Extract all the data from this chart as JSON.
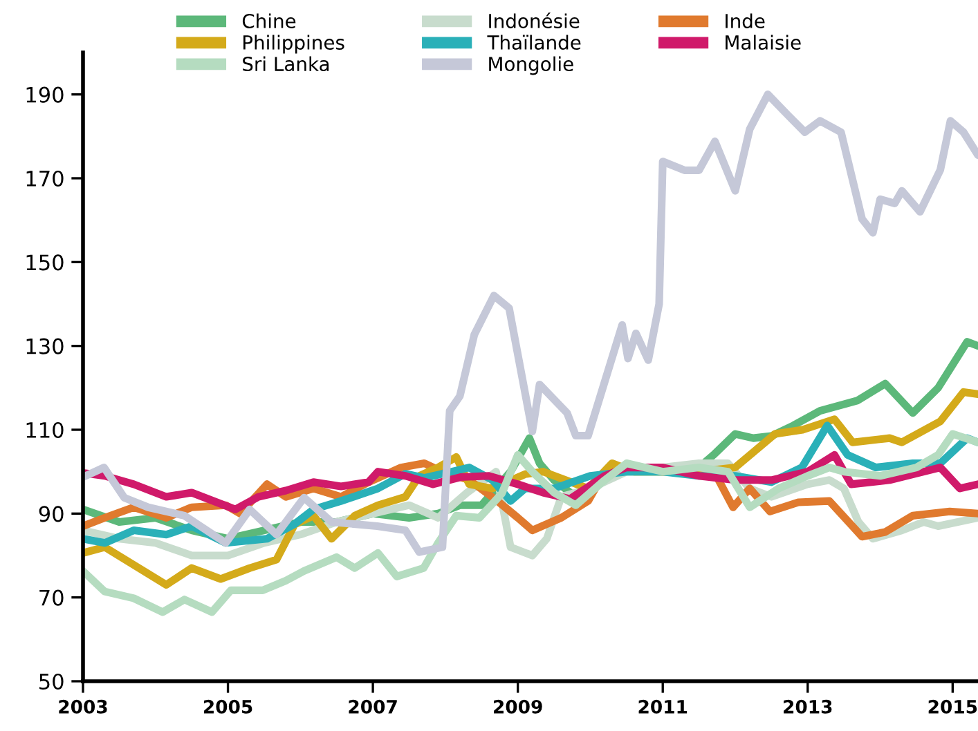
{
  "chart_data": {
    "type": "line",
    "xlim": [
      2003,
      2015.35
    ],
    "xticks": [
      2003,
      2005,
      2007,
      2009,
      2011,
      2013,
      2015
    ],
    "ylim": [
      50,
      200
    ],
    "yticks": [
      50,
      70,
      90,
      110,
      130,
      150,
      170,
      190
    ],
    "legend": "top",
    "series": [
      {
        "name": "Chine",
        "color": "#5cb87a",
        "x": [
          2003,
          2003.5,
          2004,
          2004.5,
          2005,
          2005.5,
          2006,
          2006.5,
          2007,
          2007.5,
          2007.9,
          2008.2,
          2008.5,
          2008.9,
          2009.16,
          2009.3,
          2009.5,
          2009.8,
          2010,
          2010.3,
          2010.8,
          2011,
          2011.5,
          2011.7,
          2012,
          2012.25,
          2012.5,
          2012.8,
          2013.17,
          2013.69,
          2014.07,
          2014.45,
          2014.8,
          2015.2,
          2015.35
        ],
        "values": [
          91,
          88,
          89,
          86,
          84,
          86,
          88,
          88,
          90,
          89,
          90,
          92,
          92,
          100,
          108,
          102,
          98,
          94,
          96,
          100,
          100,
          100,
          101,
          104,
          109,
          108,
          108.5,
          111,
          114.5,
          117,
          121,
          114,
          120,
          131,
          130
        ]
      },
      {
        "name": "Indonésie",
        "color": "#c8dccd",
        "x": [
          2003,
          2003.5,
          2004,
          2004.5,
          2005,
          2005.5,
          2006,
          2006.5,
          2007,
          2007.5,
          2007.9,
          2008.3,
          2008.7,
          2008.9,
          2009.2,
          2009.4,
          2009.6,
          2010,
          2010.5,
          2011,
          2011.5,
          2011.9,
          2012.2,
          2012.5,
          2013,
          2013.3,
          2013.5,
          2013.7,
          2013.9,
          2014.3,
          2014.6,
          2014.8,
          2015.35
        ],
        "values": [
          86,
          84,
          83,
          80,
          80,
          83,
          85,
          88,
          90,
          92,
          89,
          95,
          100,
          82,
          80,
          84,
          94,
          96,
          100,
          101,
          102,
          102,
          96,
          94,
          97,
          98,
          96,
          88,
          84,
          86,
          88,
          87,
          89
        ]
      },
      {
        "name": "Inde",
        "color": "#e07a2e",
        "x": [
          2003,
          2003.3,
          2003.7,
          2004.15,
          2004.5,
          2004.97,
          2005.17,
          2005.54,
          2005.8,
          2006.18,
          2006.56,
          2006.94,
          2007.39,
          2007.71,
          2007.96,
          2008.33,
          2008.72,
          2009.0,
          2009.2,
          2009.6,
          2009.97,
          2010.2,
          2010.5,
          2011,
          2011.5,
          2011.75,
          2011.97,
          2012.2,
          2012.48,
          2012.87,
          2013.3,
          2013.75,
          2014.07,
          2014.45,
          2014.96,
          2015.35
        ],
        "values": [
          87,
          89,
          91.5,
          89,
          91.5,
          92,
          90,
          97,
          94,
          96,
          94,
          97.5,
          101,
          102,
          100,
          98,
          93,
          89,
          86,
          89,
          93,
          100,
          101,
          100,
          100,
          98.7,
          91.5,
          96,
          90.5,
          92.7,
          93,
          84.5,
          85.6,
          89.5,
          90.5,
          90
        ]
      },
      {
        "name": "Philippines",
        "color": "#d4aa1a",
        "x": [
          2003,
          2003.3,
          2004.15,
          2004.5,
          2004.9,
          2005.3,
          2005.67,
          2005.92,
          2006.18,
          2006.43,
          2006.75,
          2007.07,
          2007.45,
          2007.64,
          2007.9,
          2008.15,
          2008.33,
          2008.65,
          2009.1,
          2009.35,
          2009.97,
          2010.3,
          2010.6,
          2011,
          2011.5,
          2012,
          2012.55,
          2012.93,
          2013.37,
          2013.62,
          2014.13,
          2014.3,
          2014.83,
          2015.15,
          2015.35
        ],
        "values": [
          80.6,
          82,
          73,
          77,
          74.4,
          77,
          79,
          87.4,
          89.5,
          84,
          89.5,
          92,
          94,
          99,
          101,
          103.5,
          97,
          96,
          99.4,
          100,
          96,
          102,
          100,
          100,
          100,
          101,
          109,
          110,
          112.5,
          107,
          108,
          107,
          112,
          119,
          118.5
        ]
      },
      {
        "name": "Thaïlande",
        "color": "#2ab0b8",
        "x": [
          2003,
          2003.3,
          2003.7,
          2004.15,
          2004.5,
          2004.97,
          2005.54,
          2005.92,
          2006.18,
          2006.56,
          2007.07,
          2007.45,
          2007.71,
          2008.09,
          2008.33,
          2008.65,
          2008.9,
          2009.1,
          2009.5,
          2010,
          2010.5,
          2011,
          2011.5,
          2012,
          2012.5,
          2012.92,
          2013.27,
          2013.55,
          2013.94,
          2014.45,
          2014.83,
          2015.2,
          2015.35
        ],
        "values": [
          84,
          83,
          86,
          85,
          87,
          83,
          84,
          87.5,
          91,
          93,
          96,
          99.5,
          98.5,
          100,
          101,
          98,
          93,
          96,
          96,
          99,
          100,
          100,
          99,
          99,
          97.5,
          101,
          111,
          104,
          101,
          102,
          102,
          108,
          107
        ]
      },
      {
        "name": "Malaisie",
        "color": "#d01a6a",
        "x": [
          2003,
          2003.3,
          2003.7,
          2004.15,
          2004.5,
          2005.1,
          2005.42,
          2005.8,
          2006.18,
          2006.56,
          2006.94,
          2007.07,
          2007.45,
          2007.83,
          2008.21,
          2008.6,
          2009.0,
          2009.35,
          2009.72,
          2010.2,
          2010.5,
          2011,
          2011.5,
          2012,
          2012.5,
          2013.0,
          2013.37,
          2013.6,
          2014.13,
          2014.83,
          2015.1,
          2015.35
        ],
        "values": [
          99.7,
          99,
          97,
          94,
          95,
          91,
          94,
          95.5,
          97.5,
          96.5,
          97.5,
          100,
          99,
          97,
          98.7,
          99,
          97,
          95,
          93.5,
          99,
          101,
          101,
          99,
          98,
          98,
          100,
          104,
          97,
          98,
          101,
          96,
          97
        ]
      },
      {
        "name": "Sri Lanka",
        "color": "#b5dcc0",
        "x": [
          2003,
          2003.3,
          2003.7,
          2004.1,
          2004.4,
          2004.78,
          2005.04,
          2005.48,
          2005.8,
          2006.05,
          2006.5,
          2006.75,
          2007.07,
          2007.33,
          2007.7,
          2007.9,
          2008.15,
          2008.47,
          2008.78,
          2009.0,
          2009.2,
          2009.5,
          2009.8,
          2010.2,
          2010.5,
          2011,
          2011.5,
          2011.9,
          2012.2,
          2012.6,
          2013,
          2013.3,
          2013.5,
          2014,
          2014.5,
          2014.8,
          2015.0,
          2015.35
        ],
        "values": [
          76.3,
          71.4,
          69.8,
          66.5,
          69.5,
          66.5,
          71.7,
          71.7,
          74,
          76.3,
          79.6,
          77,
          80.6,
          75,
          77,
          83,
          89.5,
          89,
          94.8,
          104,
          100,
          95,
          92,
          98,
          102,
          100,
          101,
          100,
          91.5,
          96,
          99,
          101,
          100,
          99,
          101,
          104,
          109,
          107
        ]
      },
      {
        "name": "Mongolie",
        "color": "#c5c8d8",
        "x": [
          2003,
          2003.29,
          2003.57,
          2003.9,
          2004.4,
          2004.97,
          2005.3,
          2005.67,
          2006.05,
          2006.43,
          2007.06,
          2007.45,
          2007.64,
          2007.96,
          2008.06,
          2008.2,
          2008.4,
          2008.67,
          2008.88,
          2009.2,
          2009.3,
          2009.68,
          2009.8,
          2009.97,
          2010.44,
          2010.52,
          2010.63,
          2010.8,
          2010.95,
          2011.0,
          2011.3,
          2011.5,
          2011.72,
          2012.0,
          2012.2,
          2012.45,
          2012.73,
          2012.96,
          2013.17,
          2013.46,
          2013.75,
          2013.9,
          2014.0,
          2014.2,
          2014.3,
          2014.55,
          2014.83,
          2014.97,
          2015.15,
          2015.35
        ],
        "values": [
          98.7,
          101,
          93.8,
          91.5,
          89.5,
          83,
          91,
          85,
          93.8,
          88,
          87,
          86,
          80.8,
          82,
          114.5,
          118,
          132.7,
          142,
          139,
          109.6,
          120.8,
          114,
          108.6,
          108.6,
          135,
          127,
          133,
          126.6,
          140,
          174,
          171.9,
          171.9,
          178.8,
          167,
          181.7,
          190,
          185,
          181,
          183.7,
          181,
          160.3,
          157,
          165,
          164,
          167,
          162,
          172,
          183.7,
          181,
          175.5
        ]
      }
    ]
  }
}
